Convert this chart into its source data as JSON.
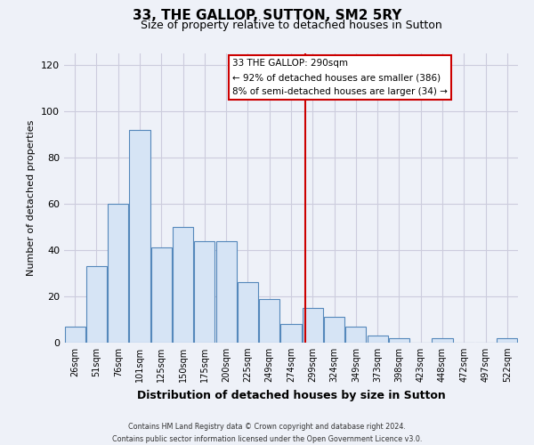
{
  "title": "33, THE GALLOP, SUTTON, SM2 5RY",
  "subtitle": "Size of property relative to detached houses in Sutton",
  "xlabel": "Distribution of detached houses by size in Sutton",
  "ylabel": "Number of detached properties",
  "bar_color": "#d6e4f5",
  "bar_edge_color": "#5588bb",
  "background_color": "#eef1f8",
  "grid_color": "#ccccdd",
  "categories": [
    "26sqm",
    "51sqm",
    "76sqm",
    "101sqm",
    "125sqm",
    "150sqm",
    "175sqm",
    "200sqm",
    "225sqm",
    "249sqm",
    "274sqm",
    "299sqm",
    "324sqm",
    "349sqm",
    "373sqm",
    "398sqm",
    "423sqm",
    "448sqm",
    "472sqm",
    "497sqm",
    "522sqm"
  ],
  "values": [
    7,
    33,
    60,
    92,
    41,
    50,
    44,
    44,
    26,
    19,
    8,
    15,
    11,
    7,
    3,
    2,
    0,
    2,
    0,
    0,
    2
  ],
  "ylim": [
    0,
    125
  ],
  "yticks": [
    0,
    20,
    40,
    60,
    80,
    100,
    120
  ],
  "ref_line_color": "#cc0000",
  "annotation_title": "33 THE GALLOP: 290sqm",
  "annotation_line1": "← 92% of detached houses are smaller (386)",
  "annotation_line2": "8% of semi-detached houses are larger (34) →",
  "footer_line1": "Contains HM Land Registry data © Crown copyright and database right 2024.",
  "footer_line2": "Contains public sector information licensed under the Open Government Licence v3.0."
}
